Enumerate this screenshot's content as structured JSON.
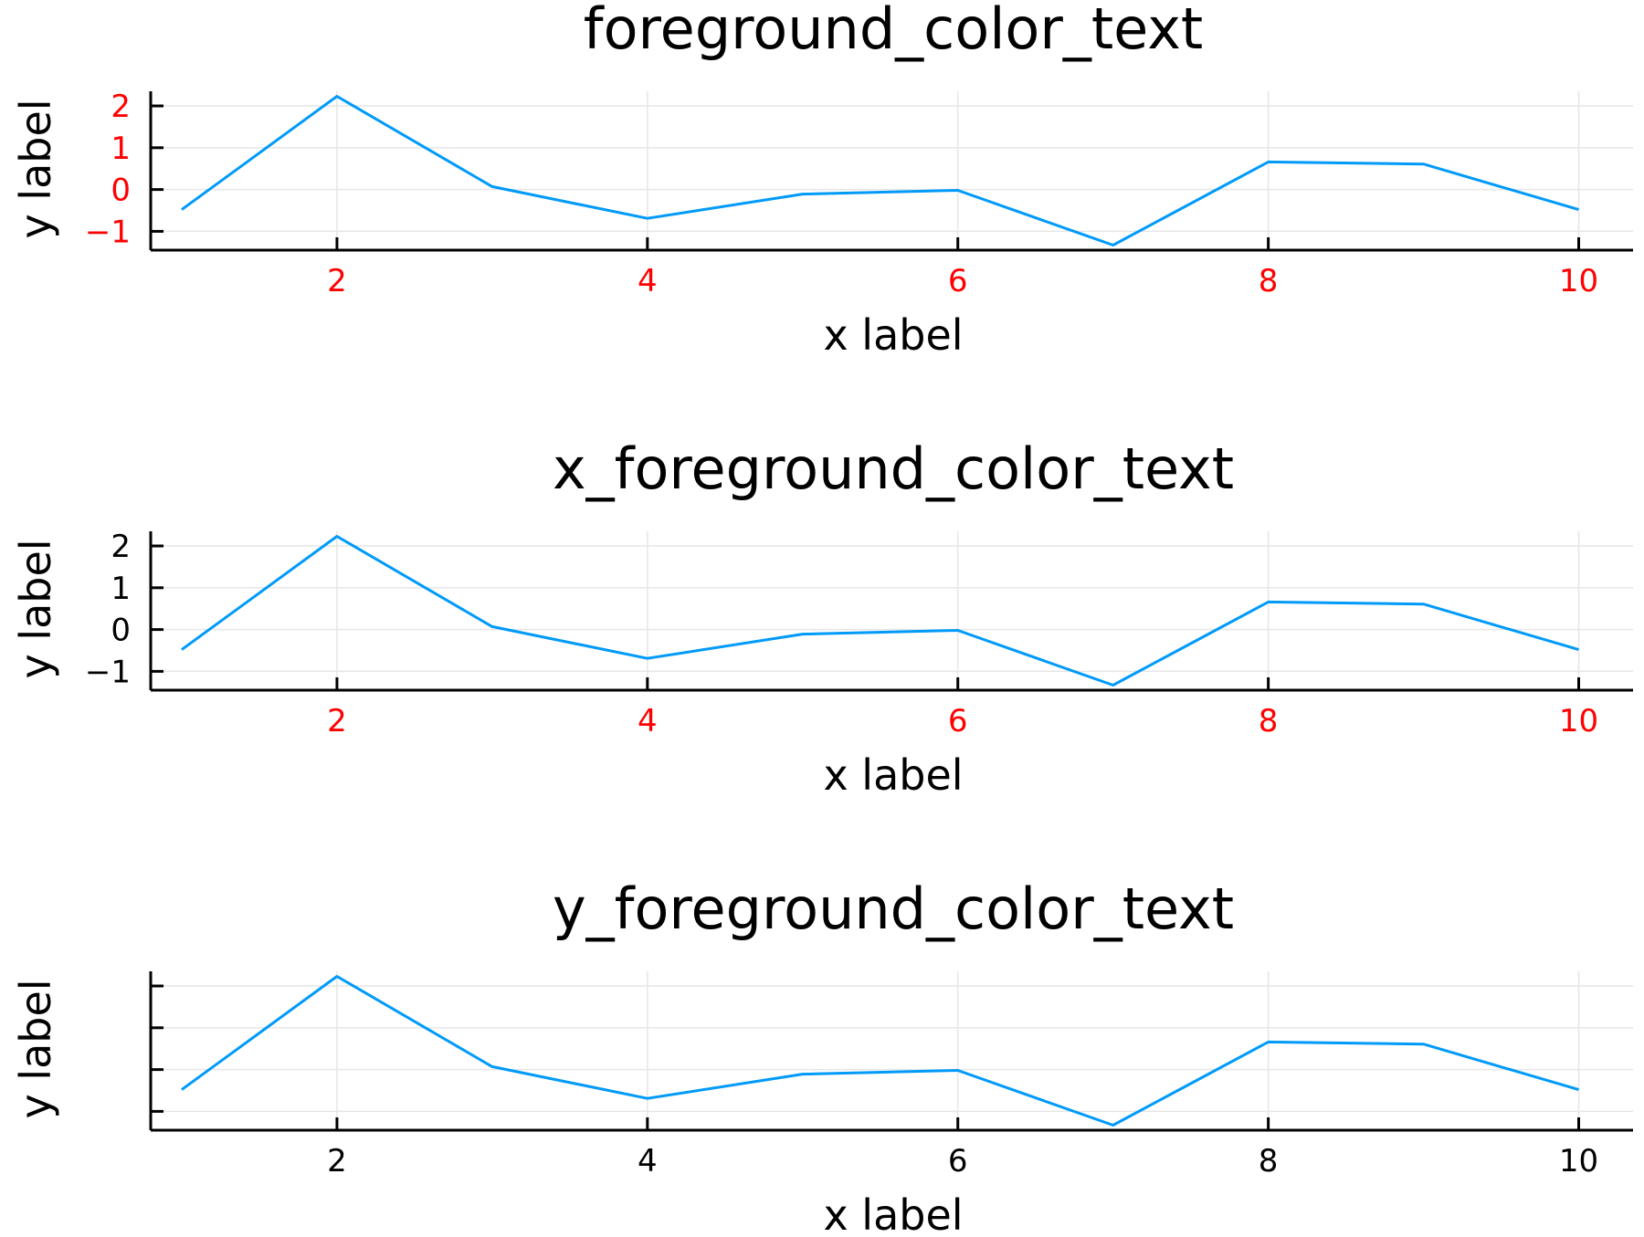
{
  "figure": {
    "background": "#ffffff",
    "line_color": "#009af9",
    "grid_color": "#e6e6e6",
    "axis_color": "#000000",
    "highlight_color": "#ff0000"
  },
  "chart_data": [
    {
      "type": "line",
      "title": "foreground_color_text",
      "xlabel": "x label",
      "ylabel": "y label",
      "x_tick_color": "#ff0000",
      "y_tick_color": "#ff0000",
      "show_y_tick_labels": true,
      "xlim": [
        0.8,
        10.35
      ],
      "ylim": [
        -1.45,
        2.35
      ],
      "x_ticks": [
        2,
        4,
        6,
        8,
        10
      ],
      "x_tick_labels": [
        "2",
        "4",
        "6",
        "8",
        "10"
      ],
      "y_ticks": [
        2,
        1,
        0,
        -1
      ],
      "y_tick_labels": [
        "2",
        "1",
        "0",
        "−1"
      ],
      "grid": true,
      "legend": "none",
      "x": [
        1,
        2,
        3,
        4,
        5,
        6,
        7,
        8,
        9,
        10
      ],
      "y": [
        -0.48,
        2.23,
        0.07,
        -0.69,
        -0.11,
        -0.02,
        -1.33,
        0.66,
        0.61,
        -0.48
      ]
    },
    {
      "type": "line",
      "title": "x_foreground_color_text",
      "xlabel": "x label",
      "ylabel": "y label",
      "x_tick_color": "#ff0000",
      "y_tick_color": "#000000",
      "show_y_tick_labels": true,
      "xlim": [
        0.8,
        10.35
      ],
      "ylim": [
        -1.45,
        2.35
      ],
      "x_ticks": [
        2,
        4,
        6,
        8,
        10
      ],
      "x_tick_labels": [
        "2",
        "4",
        "6",
        "8",
        "10"
      ],
      "y_ticks": [
        2,
        1,
        0,
        -1
      ],
      "y_tick_labels": [
        "2",
        "1",
        "0",
        "−1"
      ],
      "grid": true,
      "legend": "none",
      "x": [
        1,
        2,
        3,
        4,
        5,
        6,
        7,
        8,
        9,
        10
      ],
      "y": [
        -0.48,
        2.23,
        0.07,
        -0.69,
        -0.11,
        -0.02,
        -1.33,
        0.66,
        0.61,
        -0.48
      ]
    },
    {
      "type": "line",
      "title": "y_foreground_color_text",
      "xlabel": "x label",
      "ylabel": "y label",
      "x_tick_color": "#000000",
      "y_tick_color": "#000000",
      "show_y_tick_labels": false,
      "xlim": [
        0.8,
        10.35
      ],
      "ylim": [
        -1.45,
        2.35
      ],
      "x_ticks": [
        2,
        4,
        6,
        8,
        10
      ],
      "x_tick_labels": [
        "2",
        "4",
        "6",
        "8",
        "10"
      ],
      "y_ticks": [
        2,
        1,
        0,
        -1
      ],
      "y_tick_labels": [],
      "grid": true,
      "legend": "none",
      "x": [
        1,
        2,
        3,
        4,
        5,
        6,
        7,
        8,
        9,
        10
      ],
      "y": [
        -0.48,
        2.23,
        0.07,
        -0.69,
        -0.11,
        -0.02,
        -1.33,
        0.66,
        0.61,
        -0.48
      ]
    }
  ]
}
